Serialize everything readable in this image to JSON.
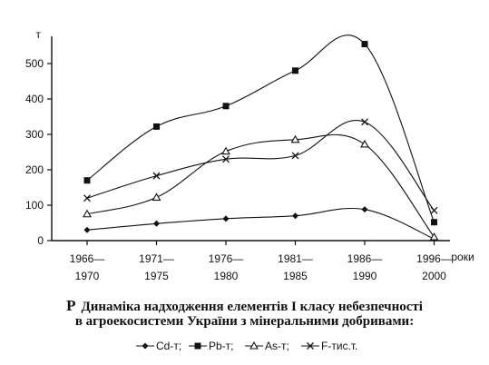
{
  "chart_data": {
    "type": "line",
    "y_unit": "т",
    "x_unit": "роки",
    "categories": [
      "1966—1970",
      "1971—1975",
      "1976—1980",
      "1981—1985",
      "1986—1990",
      "1996—2000"
    ],
    "category_lines": [
      [
        "1966—",
        "1970"
      ],
      [
        "1971—",
        "1975"
      ],
      [
        "1976—",
        "1980"
      ],
      [
        "1981—",
        "1985"
      ],
      [
        "1986—",
        "1990"
      ],
      [
        "1996—",
        "2000"
      ]
    ],
    "ylim": [
      0,
      550
    ],
    "yticks": [
      0,
      100,
      200,
      300,
      400,
      500
    ],
    "grid": false,
    "legend_position": "bottom",
    "series": [
      {
        "name": "Cd-т;",
        "marker": "diamond",
        "values": [
          30,
          48,
          62,
          70,
          88,
          5
        ]
      },
      {
        "name": "Pb-т;",
        "marker": "square",
        "values": [
          170,
          322,
          380,
          480,
          555,
          52
        ]
      },
      {
        "name": "As-т;",
        "marker": "triangle",
        "values": [
          75,
          122,
          252,
          285,
          272,
          10
        ]
      },
      {
        "name": "F-тис.т.",
        "marker": "x",
        "values": [
          120,
          183,
          230,
          240,
          335,
          85
        ]
      }
    ]
  },
  "caption": {
    "marker": "Р",
    "line1": "Динаміка надходження елементів І класу небезпечності",
    "line2": "в агроекосистеми України з мінеральними добривами:"
  },
  "colors": {
    "line": "#111111",
    "background": "#ffffff"
  }
}
